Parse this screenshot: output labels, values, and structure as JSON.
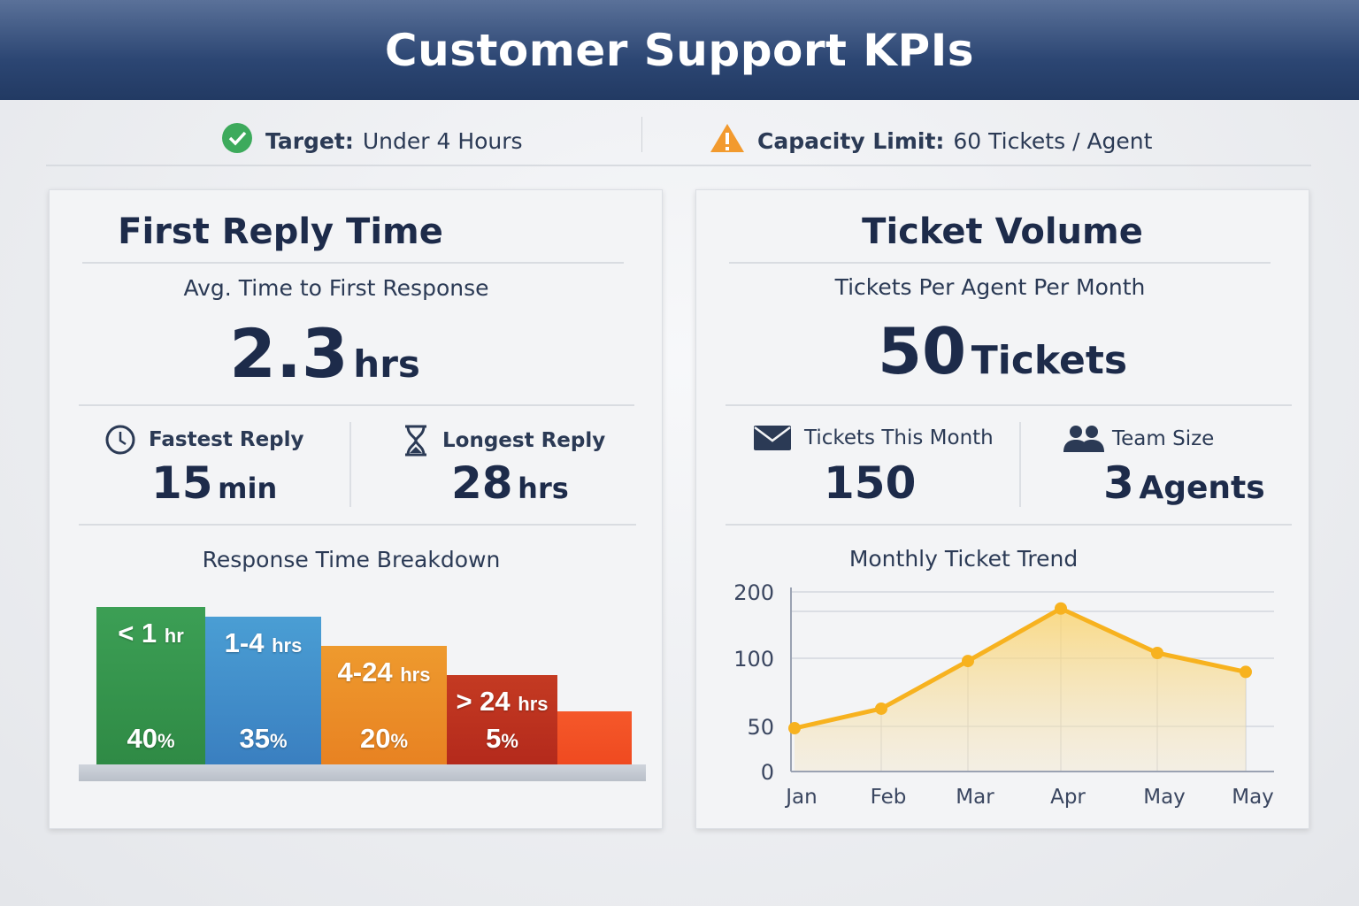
{
  "header": {
    "title": "Customer Support KPIs"
  },
  "topbar": {
    "target": {
      "icon": "check-circle-icon",
      "label": "Target:",
      "value": "Under 4 Hours",
      "color": "#3daa5c"
    },
    "capacity": {
      "icon": "warning-icon",
      "label": "Capacity Limit:",
      "value": "60 Tickets / Agent",
      "color": "#f29a2e"
    }
  },
  "first_reply": {
    "title": "First Reply Time",
    "subtitle": "Avg. Time to First Response",
    "value": "2.3",
    "unit": "hrs",
    "fastest": {
      "icon": "clock-icon",
      "label": "Fastest Reply",
      "value": "15",
      "unit": "min"
    },
    "longest": {
      "icon": "hourglass-icon",
      "label": "Longest Reply",
      "value": "28",
      "unit": "hrs"
    },
    "breakdown_title": "Response Time Breakdown"
  },
  "ticket_volume": {
    "title": "Ticket Volume",
    "subtitle": "Tickets Per Agent Per Month",
    "value": "50",
    "unit": "Tickets",
    "this_month": {
      "icon": "envelope-icon",
      "label": "Tickets This Month",
      "value": "150"
    },
    "team": {
      "icon": "people-icon",
      "label": "Team Size",
      "value": "3",
      "unit": "Agents"
    },
    "trend_title": "Monthly Ticket Trend"
  },
  "chart_data": [
    {
      "type": "bar",
      "title": "Response Time Breakdown",
      "categories": [
        {
          "num": "< 1",
          "unit": "hr"
        },
        {
          "num": "1-4",
          "unit": "hrs"
        },
        {
          "num": "4-24",
          "unit": "hrs"
        },
        {
          "num": "> 24",
          "unit": "hrs"
        }
      ],
      "values": [
        40,
        35,
        20,
        5
      ],
      "value_suffix": "%",
      "colors": [
        "#3c9f55",
        "#4a9ed4",
        "#ee9a2e",
        "#c43a22",
        "#f5582a"
      ]
    },
    {
      "type": "area",
      "title": "Monthly Ticket Trend",
      "categories": [
        "Jan",
        "Feb",
        "Mar",
        "Apr",
        "May",
        "May"
      ],
      "values": [
        48,
        63,
        98,
        175,
        108,
        90
      ],
      "yticks": [
        0,
        50,
        100,
        200
      ],
      "ylim": [
        0,
        200
      ],
      "grid": true,
      "color": "#f7b21f"
    }
  ]
}
